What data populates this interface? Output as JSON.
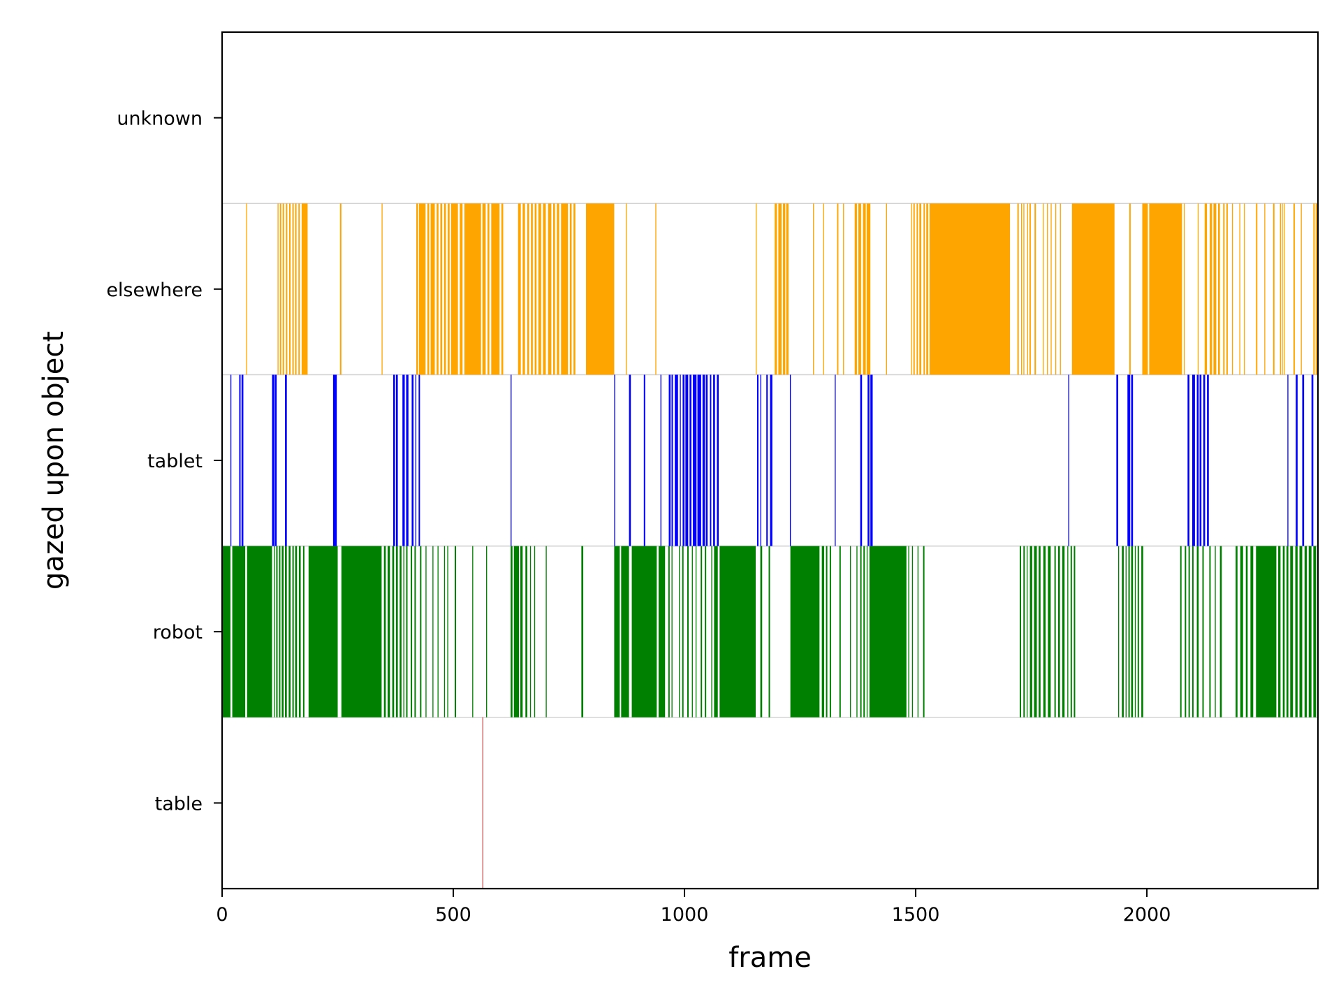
{
  "chart_data": {
    "type": "event-raster",
    "title": "",
    "xlabel": "frame",
    "ylabel": "gazed upon object",
    "xlim": [
      0,
      2370
    ],
    "xticks": [
      0,
      500,
      1000,
      1500,
      2000
    ],
    "xtick_labels": [
      "0",
      "500",
      "1000",
      "1500",
      "2000"
    ],
    "categories": [
      "table",
      "robot",
      "tablet",
      "elsewhere",
      "unknown"
    ],
    "series": [
      {
        "category": "table",
        "color": "#b22222",
        "frames": [
          [
            563,
            564
          ]
        ]
      },
      {
        "category": "robot",
        "color": "#008000",
        "frames": [
          [
            0,
            18
          ],
          [
            22,
            50
          ],
          [
            54,
            108
          ],
          [
            112,
            114
          ],
          [
            117,
            120
          ],
          [
            123,
            126
          ],
          [
            129,
            133
          ],
          [
            136,
            140
          ],
          [
            144,
            148
          ],
          [
            152,
            155
          ],
          [
            158,
            162
          ],
          [
            166,
            170
          ],
          [
            175,
            178
          ],
          [
            187,
            250
          ],
          [
            258,
            345
          ],
          [
            350,
            354
          ],
          [
            358,
            363
          ],
          [
            368,
            372
          ],
          [
            376,
            380
          ],
          [
            384,
            388
          ],
          [
            392,
            394
          ],
          [
            398,
            401
          ],
          [
            408,
            411
          ],
          [
            416,
            419
          ],
          [
            428,
            431
          ],
          [
            440,
            442
          ],
          [
            455,
            457
          ],
          [
            466,
            468
          ],
          [
            480,
            482
          ],
          [
            487,
            489
          ],
          [
            503,
            506
          ],
          [
            541,
            543
          ],
          [
            571,
            573
          ],
          [
            624,
            628
          ],
          [
            631,
            642
          ],
          [
            645,
            650
          ],
          [
            656,
            660
          ],
          [
            666,
            668
          ],
          [
            675,
            677
          ],
          [
            700,
            702
          ],
          [
            777,
            781
          ],
          [
            848,
            860
          ],
          [
            863,
            880
          ],
          [
            886,
            940
          ],
          [
            944,
            958
          ],
          [
            965,
            968
          ],
          [
            972,
            974
          ],
          [
            988,
            990
          ],
          [
            995,
            998
          ],
          [
            1006,
            1009
          ],
          [
            1016,
            1018
          ],
          [
            1024,
            1026
          ],
          [
            1035,
            1038
          ],
          [
            1044,
            1047
          ],
          [
            1058,
            1060
          ],
          [
            1064,
            1072
          ],
          [
            1076,
            1154
          ],
          [
            1164,
            1168
          ],
          [
            1182,
            1185
          ],
          [
            1229,
            1292
          ],
          [
            1297,
            1302
          ],
          [
            1306,
            1309
          ],
          [
            1314,
            1317
          ],
          [
            1335,
            1338
          ],
          [
            1358,
            1360
          ],
          [
            1372,
            1374
          ],
          [
            1380,
            1383
          ],
          [
            1387,
            1390
          ],
          [
            1394,
            1396
          ],
          [
            1400,
            1480
          ],
          [
            1484,
            1486
          ],
          [
            1492,
            1494
          ],
          [
            1504,
            1506
          ],
          [
            1516,
            1519
          ],
          [
            1725,
            1728
          ],
          [
            1733,
            1736
          ],
          [
            1740,
            1742
          ],
          [
            1747,
            1752
          ],
          [
            1756,
            1762
          ],
          [
            1766,
            1770
          ],
          [
            1776,
            1781
          ],
          [
            1786,
            1792
          ],
          [
            1800,
            1803
          ],
          [
            1808,
            1812
          ],
          [
            1817,
            1822
          ],
          [
            1828,
            1830
          ],
          [
            1835,
            1838
          ],
          [
            1842,
            1845
          ],
          [
            1938,
            1940
          ],
          [
            1946,
            1950
          ],
          [
            1954,
            1956
          ],
          [
            1960,
            1963
          ],
          [
            1966,
            1970
          ],
          [
            1974,
            1976
          ],
          [
            1980,
            1983
          ],
          [
            1988,
            1992
          ],
          [
            2072,
            2075
          ],
          [
            2082,
            2085
          ],
          [
            2090,
            2093
          ],
          [
            2098,
            2101
          ],
          [
            2108,
            2112
          ],
          [
            2120,
            2123
          ],
          [
            2135,
            2138
          ],
          [
            2147,
            2149
          ],
          [
            2158,
            2162
          ],
          [
            2192,
            2196
          ],
          [
            2202,
            2208
          ],
          [
            2214,
            2218
          ],
          [
            2224,
            2230
          ],
          [
            2236,
            2280
          ],
          [
            2284,
            2289
          ],
          [
            2294,
            2298
          ],
          [
            2302,
            2306
          ],
          [
            2310,
            2316
          ],
          [
            2321,
            2326
          ],
          [
            2330,
            2336
          ],
          [
            2341,
            2346
          ],
          [
            2350,
            2356
          ],
          [
            2360,
            2366
          ]
        ]
      },
      {
        "category": "tablet",
        "color": "#0000ff",
        "frames": [
          [
            18,
            20
          ],
          [
            37,
            40
          ],
          [
            42,
            46
          ],
          [
            108,
            113
          ],
          [
            114,
            118
          ],
          [
            136,
            140
          ],
          [
            240,
            248
          ],
          [
            370,
            374
          ],
          [
            376,
            380
          ],
          [
            390,
            395
          ],
          [
            398,
            403
          ],
          [
            410,
            414
          ],
          [
            418,
            420
          ],
          [
            425,
            428
          ],
          [
            624,
            626
          ],
          [
            848,
            850
          ],
          [
            880,
            884
          ],
          [
            912,
            915
          ],
          [
            948,
            950
          ],
          [
            966,
            970
          ],
          [
            972,
            975
          ],
          [
            979,
            986
          ],
          [
            990,
            992
          ],
          [
            996,
            1000
          ],
          [
            1002,
            1008
          ],
          [
            1011,
            1015
          ],
          [
            1018,
            1026
          ],
          [
            1028,
            1036
          ],
          [
            1039,
            1044
          ],
          [
            1046,
            1050
          ],
          [
            1055,
            1058
          ],
          [
            1062,
            1066
          ],
          [
            1070,
            1074
          ],
          [
            1157,
            1160
          ],
          [
            1164,
            1166
          ],
          [
            1177,
            1180
          ],
          [
            1185,
            1190
          ],
          [
            1228,
            1230
          ],
          [
            1325,
            1327
          ],
          [
            1380,
            1384
          ],
          [
            1396,
            1400
          ],
          [
            1402,
            1407
          ],
          [
            1830,
            1832
          ],
          [
            1934,
            1938
          ],
          [
            1958,
            1964
          ],
          [
            1966,
            1970
          ],
          [
            2088,
            2092
          ],
          [
            2098,
            2104
          ],
          [
            2108,
            2112
          ],
          [
            2114,
            2118
          ],
          [
            2122,
            2126
          ],
          [
            2130,
            2134
          ],
          [
            2304,
            2306
          ],
          [
            2322,
            2326
          ],
          [
            2336,
            2340
          ],
          [
            2356,
            2360
          ]
        ]
      },
      {
        "category": "elsewhere",
        "color": "#ffa500",
        "frames": [
          [
            52,
            54
          ],
          [
            120,
            122
          ],
          [
            125,
            128
          ],
          [
            131,
            134
          ],
          [
            138,
            141
          ],
          [
            145,
            148
          ],
          [
            152,
            155
          ],
          [
            158,
            161
          ],
          [
            165,
            168
          ],
          [
            172,
            185
          ],
          [
            255,
            258
          ],
          [
            345,
            347
          ],
          [
            420,
            424
          ],
          [
            426,
            440
          ],
          [
            444,
            448
          ],
          [
            451,
            460
          ],
          [
            464,
            468
          ],
          [
            472,
            476
          ],
          [
            480,
            484
          ],
          [
            488,
            492
          ],
          [
            495,
            510
          ],
          [
            514,
            520
          ],
          [
            524,
            560
          ],
          [
            563,
            570
          ],
          [
            574,
            578
          ],
          [
            582,
            600
          ],
          [
            604,
            608
          ],
          [
            640,
            646
          ],
          [
            650,
            655
          ],
          [
            660,
            664
          ],
          [
            668,
            672
          ],
          [
            676,
            680
          ],
          [
            684,
            690
          ],
          [
            694,
            700
          ],
          [
            705,
            712
          ],
          [
            716,
            720
          ],
          [
            724,
            729
          ],
          [
            733,
            748
          ],
          [
            752,
            756
          ],
          [
            760,
            764
          ],
          [
            787,
            848
          ],
          [
            873,
            875
          ],
          [
            937,
            939
          ],
          [
            1154,
            1156
          ],
          [
            1195,
            1200
          ],
          [
            1203,
            1210
          ],
          [
            1213,
            1218
          ],
          [
            1220,
            1225
          ],
          [
            1278,
            1280
          ],
          [
            1300,
            1302
          ],
          [
            1330,
            1333
          ],
          [
            1343,
            1345
          ],
          [
            1368,
            1373
          ],
          [
            1376,
            1382
          ],
          [
            1386,
            1392
          ],
          [
            1394,
            1402
          ],
          [
            1436,
            1438
          ],
          [
            1490,
            1492
          ],
          [
            1495,
            1498
          ],
          [
            1502,
            1505
          ],
          [
            1508,
            1512
          ],
          [
            1517,
            1520
          ],
          [
            1523,
            1527
          ],
          [
            1530,
            1704
          ],
          [
            1720,
            1723
          ],
          [
            1728,
            1730
          ],
          [
            1733,
            1735
          ],
          [
            1741,
            1743
          ],
          [
            1746,
            1749
          ],
          [
            1757,
            1760
          ],
          [
            1775,
            1777
          ],
          [
            1784,
            1786
          ],
          [
            1792,
            1794
          ],
          [
            1802,
            1804
          ],
          [
            1812,
            1814
          ],
          [
            1838,
            1930
          ],
          [
            1962,
            1965
          ],
          [
            1990,
            2002
          ],
          [
            2005,
            2076
          ],
          [
            2080,
            2082
          ],
          [
            2110,
            2112
          ],
          [
            2125,
            2130
          ],
          [
            2136,
            2141
          ],
          [
            2144,
            2150
          ],
          [
            2154,
            2158
          ],
          [
            2165,
            2168
          ],
          [
            2172,
            2175
          ],
          [
            2184,
            2186
          ],
          [
            2200,
            2202
          ],
          [
            2210,
            2212
          ],
          [
            2236,
            2239
          ],
          [
            2254,
            2256
          ],
          [
            2273,
            2276
          ],
          [
            2288,
            2290
          ],
          [
            2292,
            2294
          ],
          [
            2296,
            2298
          ],
          [
            2317,
            2320
          ],
          [
            2333,
            2335
          ],
          [
            2360,
            2363
          ],
          [
            2365,
            2368
          ]
        ]
      },
      {
        "category": "unknown",
        "color": "#808080",
        "frames": []
      }
    ]
  }
}
